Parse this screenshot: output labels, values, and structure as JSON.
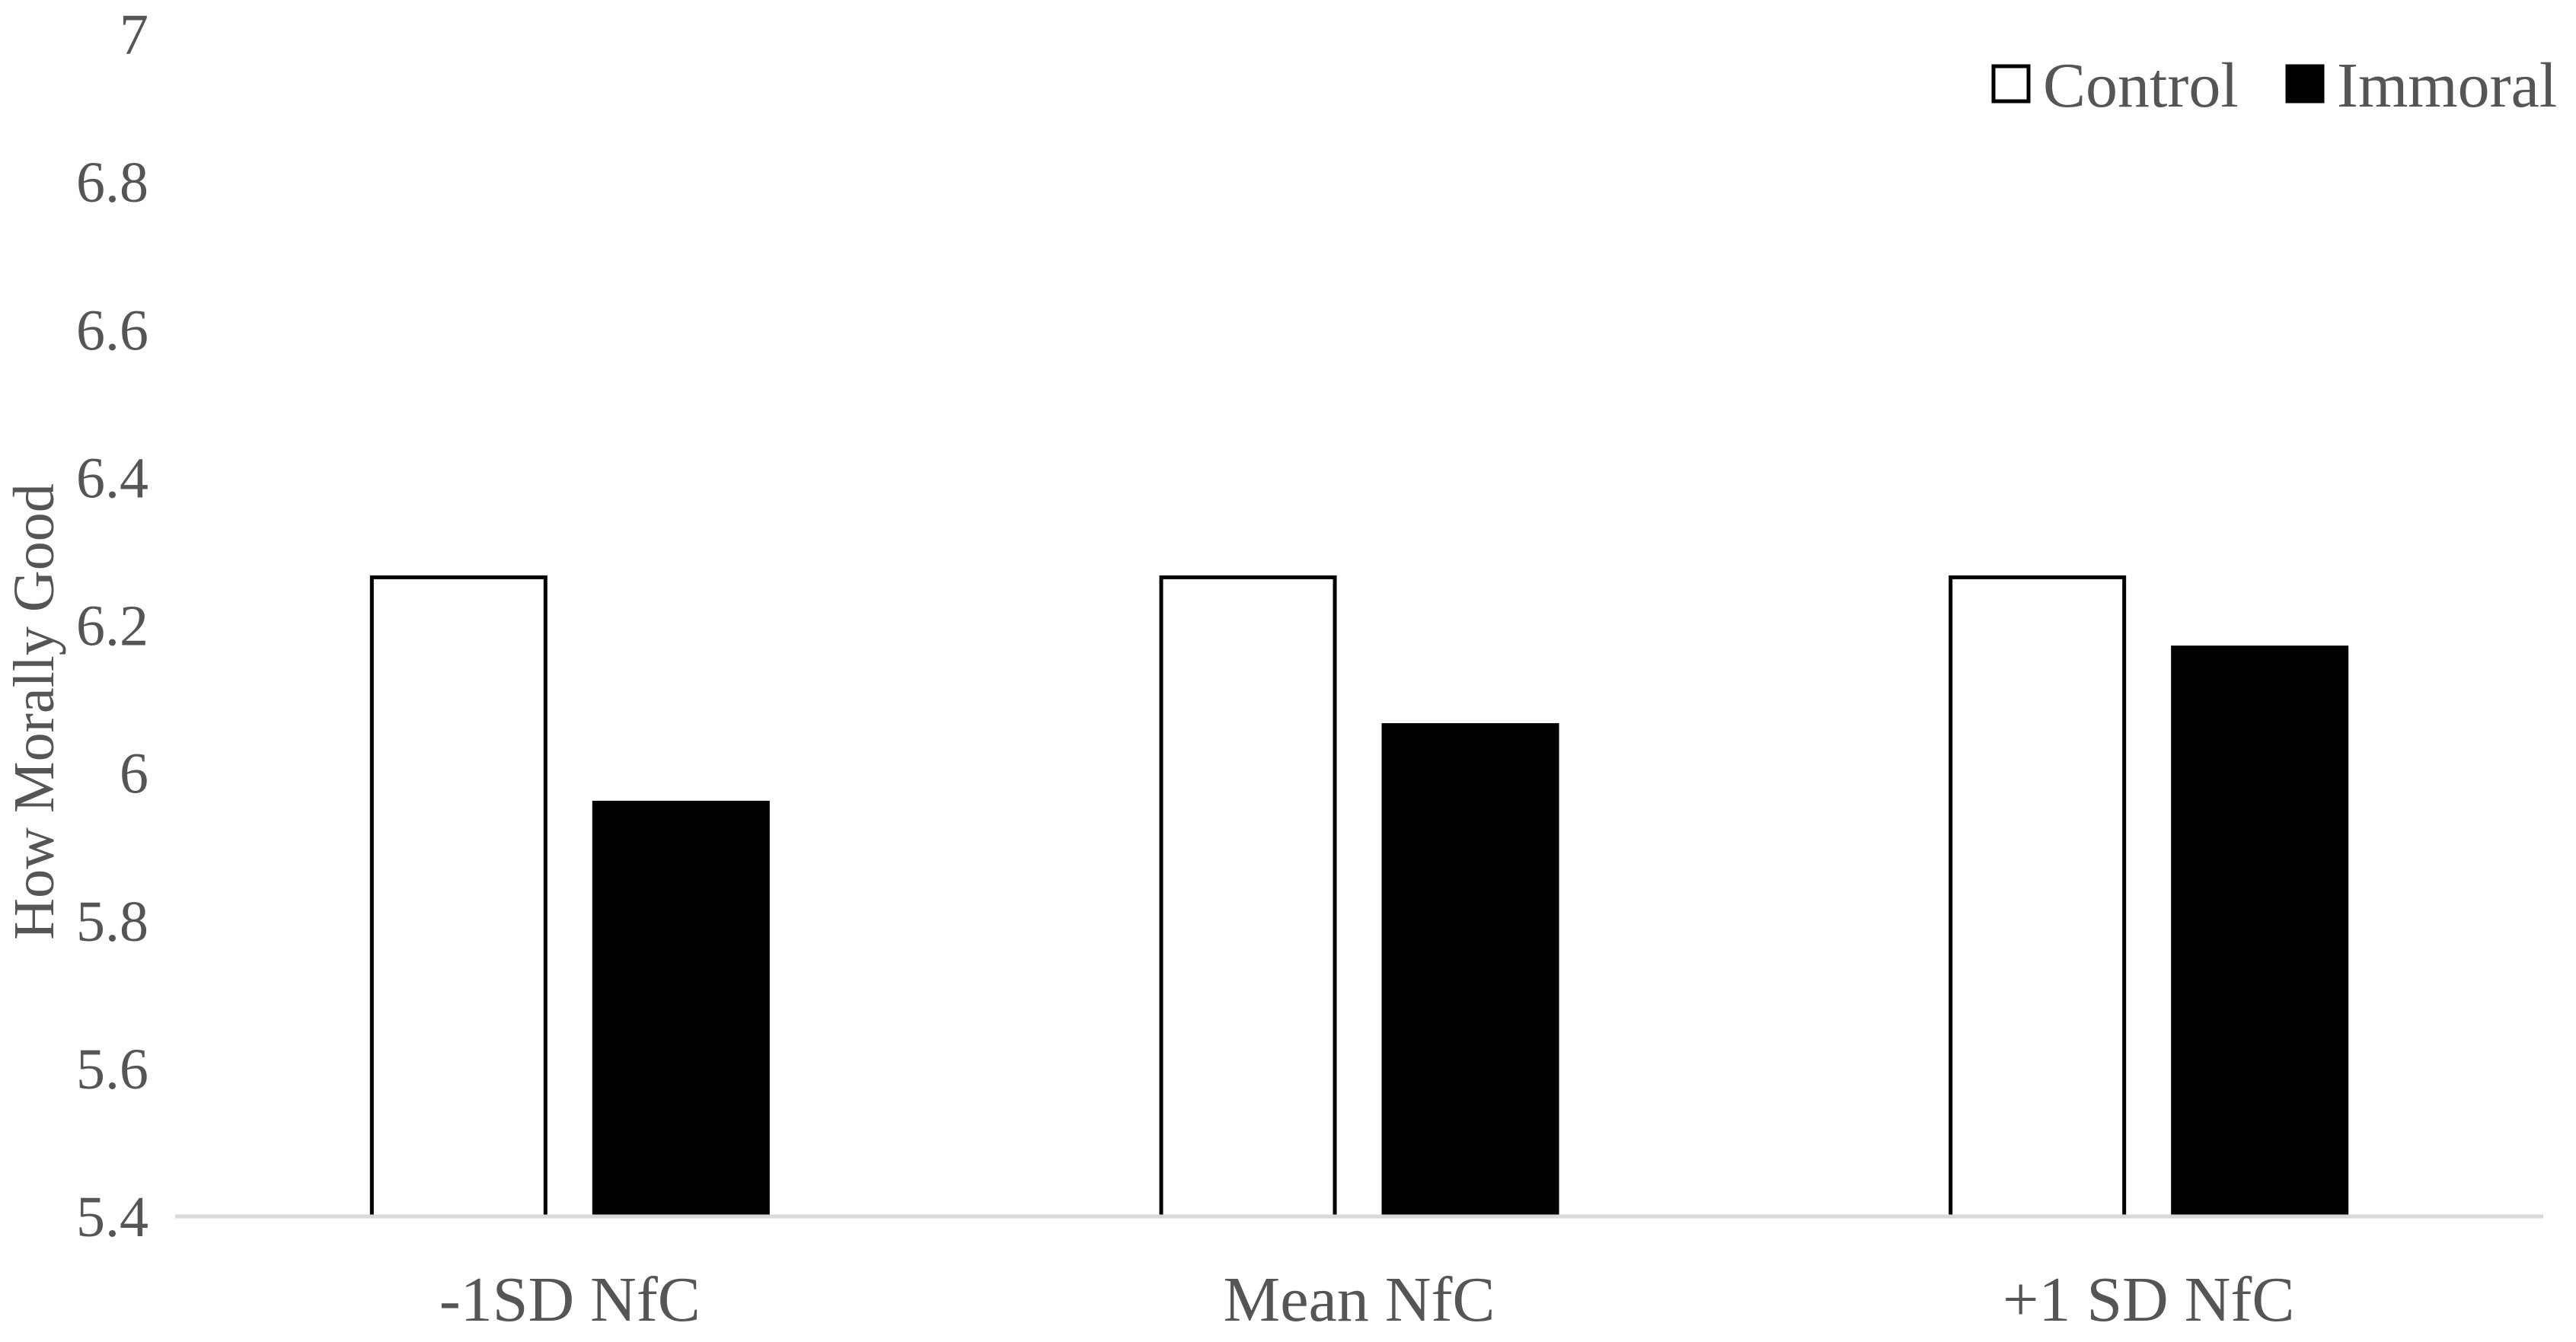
{
  "chart_data": {
    "type": "bar",
    "title": "",
    "xlabel": "",
    "ylabel": "How Morally Good",
    "categories": [
      "-1SD NfC",
      "Mean NfC",
      "+1 SD NfC"
    ],
    "series": [
      {
        "name": "Control",
        "values": [
          6.265,
          6.265,
          6.265
        ],
        "fill": "#ffffff",
        "stroke": "#000000"
      },
      {
        "name": "Immoral",
        "values": [
          5.96,
          6.065,
          6.17
        ],
        "fill": "#000000",
        "stroke": "#000000"
      }
    ],
    "ylim": [
      5.4,
      7
    ],
    "yticks": [
      5.4,
      5.6,
      5.8,
      6,
      6.2,
      6.4,
      6.6,
      6.8,
      7
    ],
    "ytick_labels": [
      "5.4",
      "5.6",
      "5.8",
      "6",
      "6.2",
      "6.4",
      "6.6",
      "6.8",
      "7"
    ],
    "grid": false,
    "legend_position": "top-right",
    "axis_color": "#d9d9d9",
    "text_color": "#555555"
  }
}
